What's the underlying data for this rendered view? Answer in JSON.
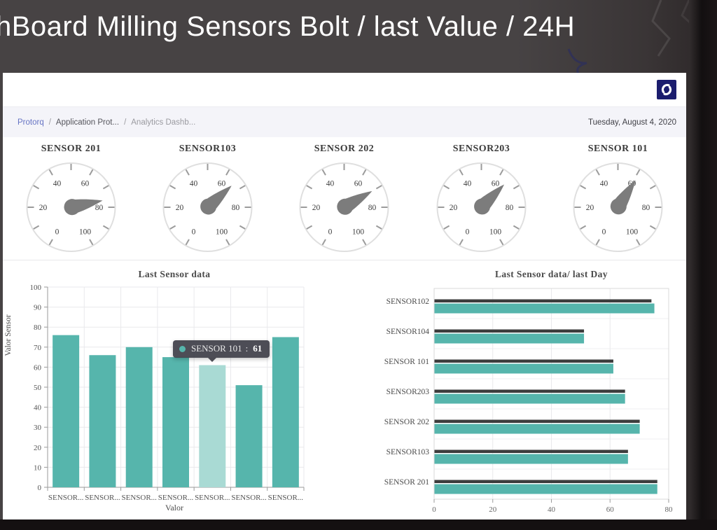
{
  "header": {
    "title": "hBoard Milling Sensors Bolt / last Value / 24H"
  },
  "topbar": {
    "logo": "swirl-logo"
  },
  "breadcrumb": {
    "items": [
      {
        "label": "Protorq"
      },
      {
        "label": "Application Prot..."
      },
      {
        "label": "Analytics Dashb..."
      }
    ],
    "separator": "/",
    "date": "Tuesday, August 4, 2020"
  },
  "colors": {
    "teal": "#56b5ac",
    "teal_highlight": "#a9dad4",
    "dark_bar": "#3d3d3d",
    "needle": "#7c7c7c",
    "gauge_rim": "#dfdfdf",
    "gauge_tick": "#9b9b9b",
    "grid": "#e9e9ec",
    "plot_border": "#d9d9d9",
    "axis": "#9a9a9a",
    "chart_text": "#4a4a4a",
    "link": "#6674c4",
    "logo_bg": "#1b1d6e"
  },
  "chart_data": [
    {
      "type": "gauge",
      "min": 0,
      "max": 100,
      "tick_labels": [
        0,
        20,
        40,
        60,
        80,
        100
      ],
      "items": [
        {
          "name": "SENSOR 201",
          "value": 76
        },
        {
          "name": "SENSOR103",
          "value": 66
        },
        {
          "name": "SENSOR 202",
          "value": 70
        },
        {
          "name": "SENSOR203",
          "value": 65
        },
        {
          "name": "SENSOR 101",
          "value": 61
        }
      ]
    },
    {
      "type": "bar",
      "title": "Last Sensor data",
      "xlabel": "Valor",
      "ylabel": "Valor Sensor",
      "ylim": [
        0,
        100
      ],
      "yticks": [
        0,
        10,
        20,
        30,
        40,
        50,
        60,
        70,
        80,
        90,
        100
      ],
      "categories": [
        "SENSOR...",
        "SENSOR...",
        "SENSOR...",
        "SENSOR...",
        "SENSOR...",
        "SENSOR...",
        "SENSOR..."
      ],
      "values": [
        76,
        66,
        70,
        65,
        61,
        51,
        75
      ],
      "highlight_index": 4,
      "grid": true,
      "tooltip": {
        "label": "SENSOR 101",
        "sep": " : ",
        "value": "61"
      }
    },
    {
      "type": "bar-horizontal",
      "title": "Last Sensor data/ last Day",
      "xlim": [
        0,
        80
      ],
      "xticks": [
        0,
        20,
        40,
        60,
        80
      ],
      "grid": true,
      "categories": [
        "SENSOR102",
        "SENSOR104",
        "SENSOR 101",
        "SENSOR203",
        "SENSOR 202",
        "SENSOR103",
        "SENSOR 201"
      ],
      "series": [
        {
          "name": "dark",
          "values": [
            74,
            51,
            61,
            65,
            70,
            66,
            76
          ]
        },
        {
          "name": "teal",
          "values": [
            75,
            51,
            61,
            65,
            70,
            66,
            76
          ]
        }
      ]
    }
  ]
}
